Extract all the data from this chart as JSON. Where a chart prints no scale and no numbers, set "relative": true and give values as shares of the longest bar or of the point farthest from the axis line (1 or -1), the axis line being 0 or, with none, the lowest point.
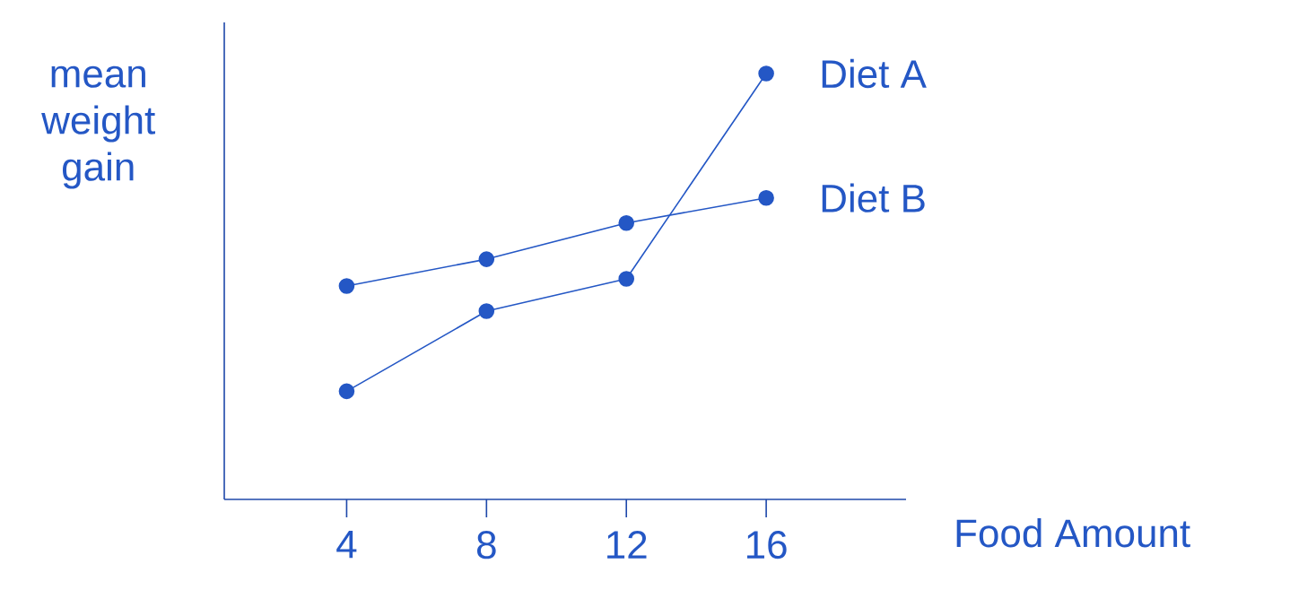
{
  "chart_data": {
    "type": "line",
    "relative": true,
    "xlabel": "Food Amount",
    "ylabel": "mean weight gain",
    "x": [
      4,
      8,
      12,
      16
    ],
    "xlim": [
      0.5,
      20
    ],
    "xticks": [
      4,
      8,
      12,
      16
    ],
    "marker": "circle",
    "series": [
      {
        "name": "Diet A",
        "color": "#2457c5",
        "values": [
          0.254,
          0.442,
          0.518,
          1
        ]
      },
      {
        "name": "Diet B",
        "color": "#2457c5",
        "values": [
          0.501,
          0.564,
          0.649,
          0.708
        ]
      }
    ]
  }
}
